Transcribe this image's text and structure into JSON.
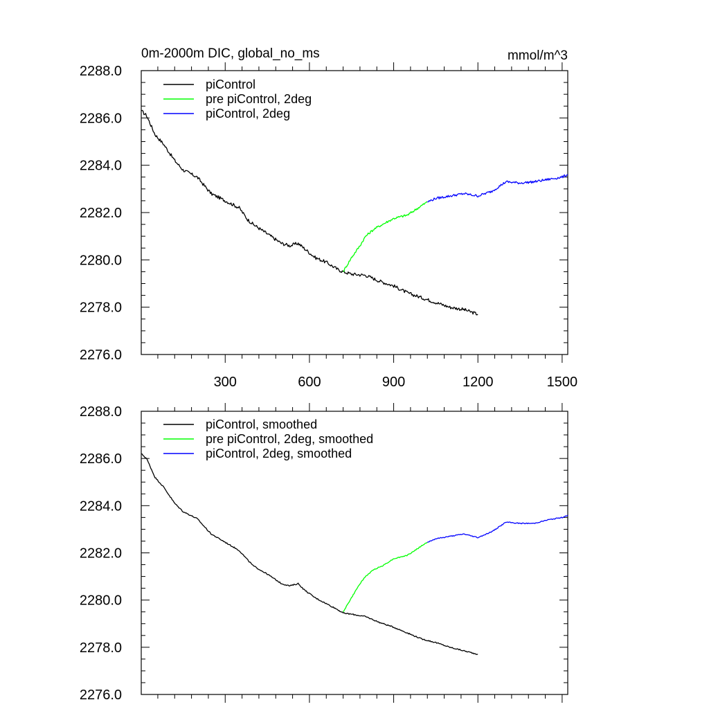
{
  "units": "mmol/m^3",
  "chart_data": [
    {
      "type": "line",
      "title": "0m-2000m DIC, global_no_ms",
      "units": "mmol/m^3",
      "xlim": [
        1,
        1520
      ],
      "ylim": [
        2276.0,
        2288.0
      ],
      "x_ticks": [
        300,
        600,
        900,
        1200,
        1500
      ],
      "y_ticks": [
        2276.0,
        2278.0,
        2280.0,
        2282.0,
        2284.0,
        2286.0,
        2288.0
      ],
      "y_tick_labels": [
        "2276.0",
        "2278.0",
        "2280.0",
        "2282.0",
        "2284.0",
        "2286.0",
        "2288.0"
      ],
      "x_tick_labels": [
        "300",
        "600",
        "900",
        "1200",
        "1500"
      ],
      "legend": [
        {
          "label": "piControl",
          "color": "#000000"
        },
        {
          "label": "pre piControl, 2deg",
          "color": "#00ff00"
        },
        {
          "label": "piControl, 2deg",
          "color": "#0000ff"
        }
      ],
      "series": [
        {
          "name": "piControl",
          "color": "#000000",
          "noise": 0.07,
          "x": [
            1,
            20,
            50,
            80,
            120,
            150,
            200,
            250,
            300,
            350,
            380,
            400,
            450,
            500,
            530,
            560,
            580,
            620,
            660,
            700,
            720,
            750,
            800,
            850,
            900,
            950,
            1000,
            1050,
            1100,
            1150,
            1200
          ],
          "y": [
            2286.3,
            2286.1,
            2285.3,
            2284.9,
            2284.2,
            2283.8,
            2283.5,
            2282.8,
            2282.5,
            2282.2,
            2281.7,
            2281.5,
            2281.1,
            2280.7,
            2280.6,
            2280.7,
            2280.5,
            2280.1,
            2279.9,
            2279.6,
            2279.5,
            2279.4,
            2279.35,
            2279.1,
            2278.9,
            2278.6,
            2278.4,
            2278.2,
            2278.0,
            2277.9,
            2277.7
          ]
        },
        {
          "name": "pre piControl, 2deg",
          "color": "#00ff00",
          "noise": 0.05,
          "x": [
            720,
            750,
            780,
            800,
            830,
            860,
            900,
            950,
            1000,
            1020
          ],
          "y": [
            2279.5,
            2280.1,
            2280.6,
            2281.0,
            2281.3,
            2281.5,
            2281.75,
            2281.9,
            2282.3,
            2282.45
          ]
        },
        {
          "name": "piControl, 2deg",
          "color": "#0000ff",
          "noise": 0.05,
          "x": [
            1020,
            1050,
            1100,
            1150,
            1200,
            1250,
            1300,
            1350,
            1400,
            1450,
            1500,
            1520
          ],
          "y": [
            2282.45,
            2282.6,
            2282.7,
            2282.8,
            2282.7,
            2282.9,
            2283.3,
            2283.25,
            2283.3,
            2283.4,
            2283.5,
            2283.6
          ]
        }
      ]
    },
    {
      "type": "line",
      "xlim": [
        1,
        1520
      ],
      "ylim": [
        2276.0,
        2288.0
      ],
      "y_ticks": [
        2276.0,
        2278.0,
        2280.0,
        2282.0,
        2284.0,
        2286.0,
        2288.0
      ],
      "y_tick_labels": [
        "2276.0",
        "2278.0",
        "2280.0",
        "2282.0",
        "2284.0",
        "2286.0",
        "2288.0"
      ],
      "x_ticks": [
        300,
        600,
        900,
        1200,
        1500
      ],
      "legend": [
        {
          "label": "piControl, smoothed",
          "color": "#000000"
        },
        {
          "label": "pre piControl, 2deg, smoothed",
          "color": "#00ff00"
        },
        {
          "label": "piControl, 2deg, smoothed",
          "color": "#0000ff"
        }
      ],
      "series": [
        {
          "name": "piControl, smoothed",
          "color": "#000000",
          "noise": 0.025,
          "x": [
            1,
            20,
            50,
            80,
            120,
            150,
            200,
            250,
            300,
            350,
            380,
            400,
            450,
            500,
            530,
            560,
            580,
            620,
            660,
            700,
            720,
            750,
            800,
            850,
            900,
            950,
            1000,
            1050,
            1100,
            1150,
            1200
          ],
          "y": [
            2286.2,
            2286.0,
            2285.2,
            2284.8,
            2284.1,
            2283.75,
            2283.45,
            2282.8,
            2282.45,
            2282.1,
            2281.7,
            2281.45,
            2281.1,
            2280.7,
            2280.6,
            2280.7,
            2280.45,
            2280.1,
            2279.85,
            2279.6,
            2279.45,
            2279.4,
            2279.3,
            2279.05,
            2278.85,
            2278.6,
            2278.35,
            2278.2,
            2278.0,
            2277.85,
            2277.7
          ]
        },
        {
          "name": "pre piControl, 2deg, smoothed",
          "color": "#00ff00",
          "noise": 0.02,
          "x": [
            720,
            750,
            780,
            800,
            830,
            860,
            900,
            950,
            1000,
            1020
          ],
          "y": [
            2279.5,
            2280.1,
            2280.7,
            2281.0,
            2281.3,
            2281.45,
            2281.75,
            2281.9,
            2282.3,
            2282.45
          ]
        },
        {
          "name": "piControl, 2deg, smoothed",
          "color": "#0000ff",
          "noise": 0.02,
          "x": [
            1020,
            1050,
            1100,
            1150,
            1200,
            1250,
            1300,
            1350,
            1400,
            1450,
            1500,
            1520
          ],
          "y": [
            2282.45,
            2282.6,
            2282.7,
            2282.8,
            2282.65,
            2282.9,
            2283.3,
            2283.25,
            2283.25,
            2283.4,
            2283.5,
            2283.6
          ]
        }
      ]
    }
  ]
}
